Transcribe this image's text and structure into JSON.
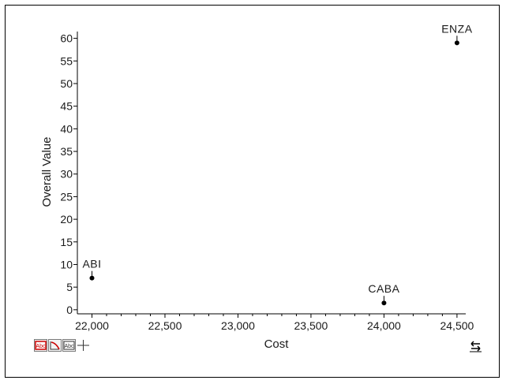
{
  "chart_data": {
    "type": "scatter",
    "xlabel": "Cost",
    "ylabel": "Overall Value",
    "xlim": [
      21900,
      24560
    ],
    "ylim": [
      -0.9,
      61.5
    ],
    "x_ticks": [
      22000,
      22500,
      23000,
      23500,
      24000,
      24500
    ],
    "x_tick_labels": [
      "22,000",
      "22,500",
      "23,000",
      "23,500",
      "24,000",
      "24,500"
    ],
    "y_ticks": [
      0,
      5,
      10,
      15,
      20,
      25,
      30,
      35,
      40,
      45,
      50,
      55,
      60
    ],
    "y_tick_labels": [
      "0",
      "5",
      "10",
      "15",
      "20",
      "25",
      "30",
      "35",
      "40",
      "45",
      "50",
      "55",
      "60"
    ],
    "points": [
      {
        "label": "ABI",
        "x": 22000,
        "y": 7
      },
      {
        "label": "CABA",
        "x": 24000,
        "y": 1.5
      },
      {
        "label": "ENZA",
        "x": 24500,
        "y": 59
      }
    ],
    "grid": false,
    "point_color": "#000000",
    "axis_color": "#000000"
  },
  "toolbar": {
    "tools": [
      {
        "icon": "label-tool-icon",
        "active": true
      },
      {
        "icon": "trend-line-icon",
        "active": false
      },
      {
        "icon": "label-box-icon",
        "active": false
      },
      {
        "icon": "crosshair-icon",
        "active": false
      }
    ],
    "swap_icon": "swap-axes-icon"
  }
}
